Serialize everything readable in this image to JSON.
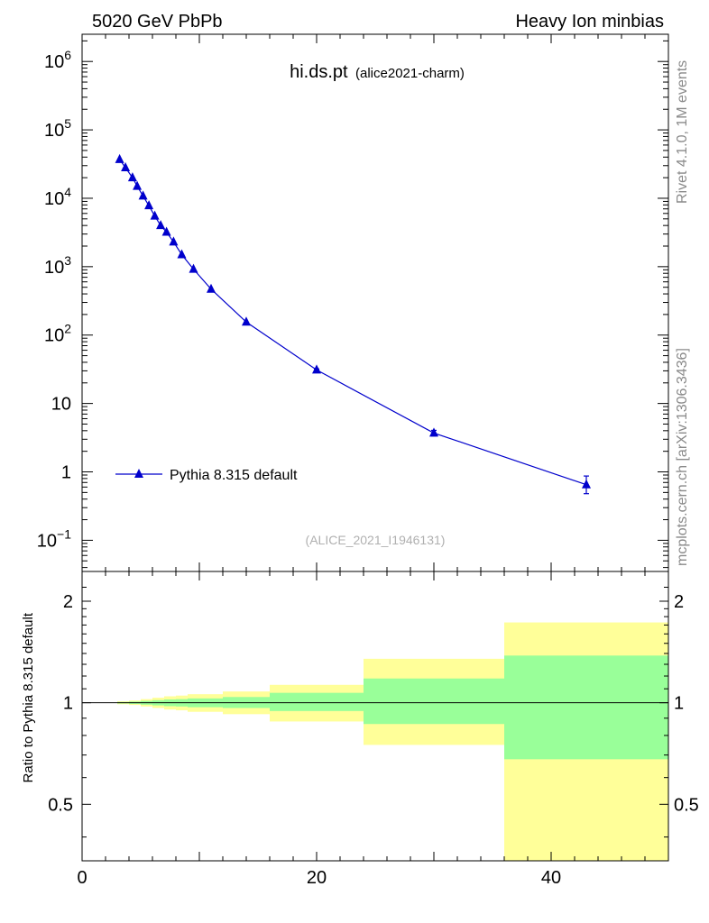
{
  "header": {
    "left": "5020 GeV PbPb",
    "right": "Heavy Ion minbias"
  },
  "plot_title": {
    "main": "hi.ds.pt",
    "sub": "(alice2021-charm)"
  },
  "side_labels": {
    "rivet": "Rivet 4.1.0,  1M events",
    "mcplots": "mcplots.cern.ch [arXiv:1306.3436]"
  },
  "watermark": "(ALICE_2021_I1946131)",
  "colors": {
    "series": "#0000cc",
    "band_inner": "#99ff99",
    "band_outer": "#ffff99"
  },
  "chart_data": [
    {
      "type": "line",
      "title": "hi.ds.pt",
      "yscale": "log",
      "xlim": [
        0,
        50
      ],
      "ylim": [
        0.035,
        2500000
      ],
      "ytick_values": [
        0.1,
        1,
        10,
        100,
        1000,
        10000,
        100000,
        1000000
      ],
      "ytick_labels": [
        {
          "base": "10",
          "exp": "−1"
        },
        {
          "base": "1",
          "exp": ""
        },
        {
          "base": "10",
          "exp": ""
        },
        {
          "base": "10",
          "exp": "2"
        },
        {
          "base": "10",
          "exp": "3"
        },
        {
          "base": "10",
          "exp": "4"
        },
        {
          "base": "10",
          "exp": "5"
        },
        {
          "base": "10",
          "exp": "6"
        }
      ],
      "legend": "top-left",
      "series": [
        {
          "name": "Pythia 8.315 default",
          "marker": "triangle",
          "x": [
            3.2,
            3.7,
            4.3,
            4.7,
            5.2,
            5.7,
            6.2,
            6.7,
            7.2,
            7.8,
            8.5,
            9.5,
            11.0,
            14.0,
            20.0,
            30.0,
            43.0
          ],
          "y": [
            37000,
            28000,
            20000,
            15000,
            10800,
            7800,
            5500,
            4000,
            3200,
            2300,
            1500,
            920,
            470,
            155,
            31,
            3.7,
            0.65
          ],
          "yerr_low": [
            0,
            0,
            0,
            0,
            0,
            0,
            0,
            0,
            0,
            0,
            0,
            0,
            0,
            0,
            1.0,
            0.35,
            0.17
          ],
          "yerr_high": [
            0,
            0,
            0,
            0,
            0,
            0,
            0,
            0,
            0,
            0,
            0,
            0,
            0,
            0,
            1.0,
            0.35,
            0.22
          ]
        }
      ]
    },
    {
      "type": "area",
      "ylabel": "Ratio to Pythia 8.315 default",
      "yscale": "log",
      "xlim": [
        0,
        50
      ],
      "ylim": [
        0.34,
        2.45
      ],
      "xticks": [
        0,
        20,
        40
      ],
      "ytick_labels": [
        "0.5",
        "1",
        "2"
      ],
      "ytick_values": [
        0.5,
        1,
        2
      ],
      "reference_line": 1,
      "bins": [
        {
          "x0": 3,
          "x1": 4,
          "outer_lo": 0.99,
          "outer_hi": 1.01,
          "inner_lo": 0.995,
          "inner_hi": 1.005
        },
        {
          "x0": 4,
          "x1": 5,
          "outer_lo": 0.985,
          "outer_hi": 1.015,
          "inner_lo": 0.992,
          "inner_hi": 1.008
        },
        {
          "x0": 5,
          "x1": 6,
          "outer_lo": 0.975,
          "outer_hi": 1.025,
          "inner_lo": 0.987,
          "inner_hi": 1.013
        },
        {
          "x0": 6,
          "x1": 7,
          "outer_lo": 0.965,
          "outer_hi": 1.035,
          "inner_lo": 0.982,
          "inner_hi": 1.018
        },
        {
          "x0": 7,
          "x1": 8,
          "outer_lo": 0.955,
          "outer_hi": 1.045,
          "inner_lo": 0.977,
          "inner_hi": 1.023
        },
        {
          "x0": 8,
          "x1": 9,
          "outer_lo": 0.95,
          "outer_hi": 1.05,
          "inner_lo": 0.975,
          "inner_hi": 1.025
        },
        {
          "x0": 9,
          "x1": 12,
          "outer_lo": 0.94,
          "outer_hi": 1.06,
          "inner_lo": 0.97,
          "inner_hi": 1.03
        },
        {
          "x0": 12,
          "x1": 16,
          "outer_lo": 0.925,
          "outer_hi": 1.08,
          "inner_lo": 0.965,
          "inner_hi": 1.04
        },
        {
          "x0": 16,
          "x1": 24,
          "outer_lo": 0.88,
          "outer_hi": 1.13,
          "inner_lo": 0.945,
          "inner_hi": 1.07
        },
        {
          "x0": 24,
          "x1": 36,
          "outer_lo": 0.75,
          "outer_hi": 1.35,
          "inner_lo": 0.865,
          "inner_hi": 1.18
        },
        {
          "x0": 36,
          "x1": 50,
          "outer_lo": 0.34,
          "outer_hi": 1.73,
          "inner_lo": 0.68,
          "inner_hi": 1.38
        }
      ]
    }
  ]
}
